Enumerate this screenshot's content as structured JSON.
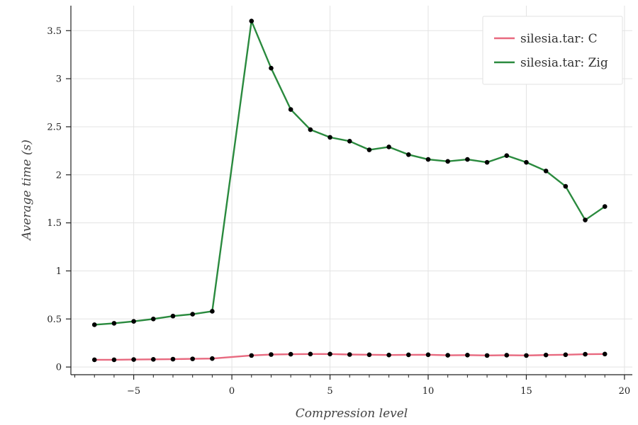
{
  "chart_data": {
    "type": "line",
    "xlabel": "Compression level",
    "ylabel": "Average time (s)",
    "xlim": [
      -8.2,
      20.4
    ],
    "ylim": [
      -0.08,
      3.76
    ],
    "xticks": [
      -5,
      0,
      5,
      10,
      15,
      20
    ],
    "xtick_labels": [
      "−5",
      "0",
      "5",
      "10",
      "15",
      "20"
    ],
    "yticks": [
      0,
      0.5,
      1,
      1.5,
      2,
      2.5,
      3,
      3.5
    ],
    "ytick_labels": [
      "0",
      "0.5",
      "1",
      "1.5",
      "2",
      "2.5",
      "3",
      "3.5"
    ],
    "grid": true,
    "legend_position": "top-right",
    "series": [
      {
        "name": "silesia.tar: C",
        "color": "#e8697f",
        "x": [
          -7,
          -6,
          -5,
          -4,
          -3,
          -2,
          -1,
          1,
          2,
          3,
          4,
          5,
          6,
          7,
          8,
          9,
          10,
          11,
          12,
          13,
          14,
          15,
          16,
          17,
          18,
          19
        ],
        "y": [
          0.075,
          0.075,
          0.078,
          0.08,
          0.082,
          0.085,
          0.088,
          0.12,
          0.13,
          0.133,
          0.135,
          0.135,
          0.13,
          0.128,
          0.125,
          0.127,
          0.128,
          0.122,
          0.124,
          0.12,
          0.123,
          0.12,
          0.125,
          0.128,
          0.133,
          0.135
        ]
      },
      {
        "name": "silesia.tar: Zig",
        "color": "#2a8a3e",
        "x": [
          -7,
          -6,
          -5,
          -4,
          -3,
          -2,
          -1,
          1,
          2,
          3,
          4,
          5,
          6,
          7,
          8,
          9,
          10,
          11,
          12,
          13,
          14,
          15,
          16,
          17,
          18,
          19
        ],
        "y": [
          0.44,
          0.455,
          0.475,
          0.5,
          0.53,
          0.55,
          0.58,
          3.6,
          3.11,
          2.68,
          2.47,
          2.39,
          2.35,
          2.26,
          2.29,
          2.21,
          2.16,
          2.14,
          2.16,
          2.13,
          2.2,
          2.13,
          2.04,
          1.88,
          1.53,
          1.67
        ]
      }
    ]
  }
}
